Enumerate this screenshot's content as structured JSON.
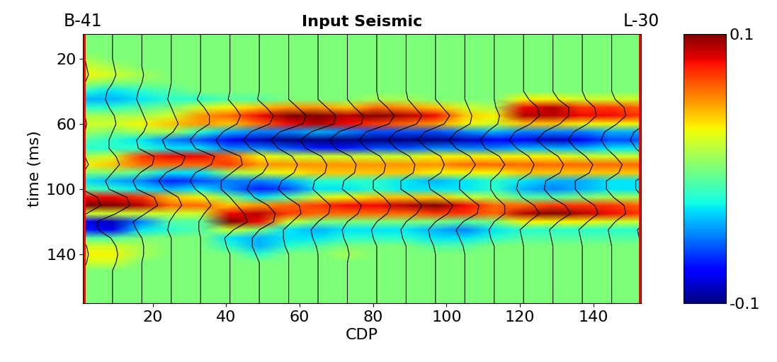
{
  "chart_data": {
    "type": "heatmap",
    "title": "Input Seismic",
    "x_label": "CDP",
    "y_label": "time (ms)",
    "color": "jet",
    "xlim": [
      1,
      153
    ],
    "ylim": [
      170,
      5
    ],
    "xticks": [
      20,
      40,
      60,
      80,
      100,
      120,
      140
    ],
    "yticks": [
      20,
      60,
      100,
      140
    ],
    "wells": [
      {
        "name": "B-41",
        "cdp": 1
      },
      {
        "name": "L-30",
        "cdp": 153
      }
    ],
    "colorbar": {
      "range": [
        -0.1,
        0.1
      ],
      "ticks": [
        0.1,
        -0.1
      ]
    },
    "x": [
      1,
      9,
      17,
      25,
      33,
      41,
      49,
      57,
      65,
      73,
      81,
      89,
      97,
      105,
      113,
      121,
      129,
      137,
      145,
      153
    ],
    "y": [
      5,
      10,
      15,
      20,
      25,
      30,
      35,
      40,
      45,
      50,
      55,
      60,
      65,
      70,
      75,
      80,
      85,
      90,
      95,
      100,
      105,
      110,
      115,
      120,
      125,
      130,
      135,
      140,
      145,
      150,
      155,
      160,
      165,
      170
    ],
    "traces": [
      [
        0,
        0,
        0,
        0.01,
        0.02,
        0.03,
        0.01,
        -0.02,
        -0.04,
        -0.02,
        0.01,
        0.02,
        0.01,
        -0.01,
        -0.02,
        0.01,
        0.03,
        0,
        -0.03,
        -0.01,
        0.08,
        0.1,
        0.02,
        -0.08,
        -0.07,
        -0.01,
        0.02,
        0.03,
        0.02,
        0,
        0,
        0,
        0,
        0
      ],
      [
        0,
        0,
        0,
        0,
        0.01,
        0.02,
        0,
        -0.03,
        -0.04,
        -0.02,
        0.01,
        0.02,
        0,
        -0.02,
        -0.02,
        0.02,
        0.04,
        0,
        -0.04,
        -0.02,
        0.08,
        0.1,
        0.02,
        -0.09,
        -0.08,
        -0.01,
        0.02,
        0.03,
        0.02,
        0,
        0,
        0,
        0,
        0
      ],
      [
        0,
        0,
        0,
        0,
        0,
        0.01,
        0,
        -0.02,
        -0.03,
        -0.01,
        0.01,
        0.03,
        0.01,
        -0.03,
        -0.02,
        0.07,
        0.06,
        -0.01,
        -0.05,
        -0.03,
        0.07,
        0.09,
        0.02,
        -0.05,
        -0.03,
        0,
        0.01,
        0.01,
        0,
        0,
        0,
        0,
        0,
        0
      ],
      [
        0,
        0,
        0,
        0,
        0,
        0,
        0,
        -0.01,
        -0.02,
        0,
        0.02,
        0.04,
        0.01,
        -0.05,
        -0.03,
        0.08,
        0.06,
        -0.03,
        -0.07,
        -0.04,
        0.04,
        0.06,
        0.02,
        -0.01,
        -0.02,
        0,
        0,
        0,
        0,
        0,
        0,
        0,
        0,
        0
      ],
      [
        0,
        0,
        0,
        0,
        0,
        0,
        0,
        0,
        -0.02,
        0.02,
        0.05,
        0.05,
        -0.02,
        -0.06,
        -0.03,
        0.08,
        0.06,
        -0.03,
        -0.06,
        -0.03,
        0.03,
        0.06,
        0.02,
        -0.01,
        -0.01,
        0,
        0,
        0,
        0,
        0,
        0,
        0,
        0,
        0
      ],
      [
        0,
        0,
        0,
        0,
        0,
        0,
        0,
        0,
        -0.01,
        0.03,
        0.06,
        0.04,
        -0.04,
        -0.08,
        -0.05,
        0.06,
        0.07,
        0.01,
        -0.05,
        -0.05,
        0,
        0.04,
        0.08,
        0.1,
        0.02,
        -0.03,
        -0.02,
        0,
        0,
        0,
        0,
        0,
        0,
        0
      ],
      [
        0,
        0,
        0,
        0,
        0,
        0,
        0,
        0,
        -0.01,
        0.04,
        0.08,
        0.06,
        -0.05,
        -0.09,
        -0.05,
        0.03,
        0.05,
        0.02,
        -0.05,
        -0.07,
        -0.03,
        0.05,
        0.09,
        0.08,
        0,
        -0.04,
        -0.04,
        -0.02,
        0,
        0,
        0,
        0,
        0,
        0
      ],
      [
        0,
        0,
        0,
        0,
        0,
        0,
        0,
        0,
        0,
        0.05,
        0.1,
        0.08,
        -0.05,
        -0.1,
        -0.06,
        0.02,
        0.05,
        0.03,
        -0.04,
        -0.06,
        -0.01,
        0.06,
        0.07,
        0.02,
        -0.03,
        -0.03,
        -0.02,
        0,
        0,
        0,
        0,
        0,
        0,
        0
      ],
      [
        0,
        0,
        0,
        0,
        0,
        0,
        0,
        0,
        0,
        0.05,
        0.1,
        0.09,
        -0.04,
        -0.1,
        -0.07,
        0.02,
        0.05,
        0.04,
        -0.02,
        -0.03,
        0.02,
        0.07,
        0.06,
        0,
        -0.04,
        -0.03,
        -0.01,
        0,
        0,
        0,
        0,
        0,
        0,
        0
      ],
      [
        0,
        0,
        0,
        0,
        0,
        0,
        0,
        0,
        0,
        0.04,
        0.09,
        0.08,
        -0.05,
        -0.1,
        -0.07,
        0.02,
        0.05,
        0.04,
        -0.02,
        -0.03,
        0.03,
        0.08,
        0.06,
        0,
        -0.03,
        -0.02,
        0,
        0.01,
        0,
        0,
        0,
        0,
        0,
        0
      ],
      [
        0,
        0,
        0,
        0,
        0,
        0,
        0,
        0,
        0.01,
        0.06,
        0.1,
        0.07,
        -0.06,
        -0.1,
        -0.06,
        0.02,
        0.05,
        0.04,
        -0.02,
        -0.02,
        0.04,
        0.08,
        0.06,
        0,
        -0.03,
        -0.02,
        0,
        0,
        0,
        0,
        0,
        0,
        0,
        0
      ],
      [
        0,
        0,
        0,
        0,
        0,
        0,
        0,
        0,
        0.01,
        0.05,
        0.09,
        0.06,
        -0.06,
        -0.1,
        -0.06,
        0.02,
        0.05,
        0.04,
        -0.03,
        -0.03,
        0.04,
        0.09,
        0.06,
        0,
        -0.03,
        -0.02,
        0,
        0,
        0,
        0,
        0,
        0,
        0,
        0
      ],
      [
        0,
        0,
        0,
        0,
        0,
        0,
        0,
        0,
        0,
        0.04,
        0.08,
        0.05,
        -0.06,
        -0.1,
        -0.05,
        0.03,
        0.05,
        0.03,
        -0.04,
        -0.03,
        0.04,
        0.1,
        0.07,
        0,
        -0.04,
        -0.03,
        -0.01,
        0,
        0,
        0,
        0,
        0,
        0,
        0
      ],
      [
        0,
        0,
        0,
        0,
        0,
        0,
        0,
        0,
        0,
        0.02,
        0.04,
        0.03,
        -0.05,
        -0.09,
        -0.05,
        0.03,
        0.06,
        0.03,
        -0.03,
        -0.03,
        0.02,
        0.08,
        0.07,
        -0.01,
        -0.05,
        -0.03,
        -0.01,
        0,
        0,
        0,
        0,
        0,
        0,
        0
      ],
      [
        0,
        0,
        0,
        0,
        0,
        0,
        0,
        0,
        0,
        0.01,
        0.03,
        0.02,
        -0.04,
        -0.08,
        -0.05,
        0.03,
        0.06,
        0.03,
        -0.02,
        -0.02,
        0.01,
        0.06,
        0.06,
        0,
        -0.03,
        -0.02,
        0,
        0,
        0,
        0,
        0,
        0,
        0,
        0
      ],
      [
        0,
        0,
        0,
        0,
        0,
        0,
        0,
        0,
        0.03,
        0.08,
        0.09,
        0.04,
        -0.05,
        -0.08,
        -0.04,
        0.03,
        0.06,
        0.04,
        -0.03,
        -0.04,
        -0.01,
        0.06,
        0.09,
        0.03,
        -0.02,
        -0.01,
        0,
        0,
        0,
        0,
        0,
        0,
        0,
        0
      ],
      [
        0,
        0,
        0,
        0,
        0,
        0,
        0,
        0,
        0.03,
        0.09,
        0.09,
        0.04,
        -0.05,
        -0.09,
        -0.04,
        0.03,
        0.06,
        0.04,
        -0.04,
        -0.05,
        -0.01,
        0.07,
        0.1,
        0.03,
        -0.02,
        -0.01,
        0,
        0,
        0,
        0,
        0,
        0,
        0,
        0
      ],
      [
        0,
        0,
        0,
        0,
        0,
        0,
        0,
        0,
        0.02,
        0.07,
        0.08,
        0.03,
        -0.05,
        -0.08,
        -0.04,
        0.02,
        0.06,
        0.04,
        -0.04,
        -0.04,
        0,
        0.07,
        0.09,
        0.03,
        -0.02,
        -0.01,
        0,
        0,
        0,
        0,
        0,
        0,
        0,
        0
      ],
      [
        0,
        0,
        0,
        0,
        0,
        0,
        0,
        0,
        0.02,
        0.07,
        0.08,
        0.03,
        -0.04,
        -0.06,
        -0.03,
        0.02,
        0.06,
        0.04,
        -0.03,
        -0.03,
        0.01,
        0.07,
        0.08,
        0.02,
        -0.02,
        -0.01,
        0,
        0,
        0,
        0,
        0,
        0,
        0,
        0
      ],
      [
        0,
        0,
        0,
        0,
        0,
        0,
        0,
        0,
        0.02,
        0.06,
        0.07,
        0.03,
        -0.04,
        -0.06,
        -0.03,
        0.02,
        0.06,
        0.04,
        -0.03,
        -0.03,
        0.01,
        0.06,
        0.07,
        0.02,
        -0.02,
        -0.01,
        0,
        0,
        0,
        0,
        0,
        0,
        0,
        0
      ]
    ]
  }
}
